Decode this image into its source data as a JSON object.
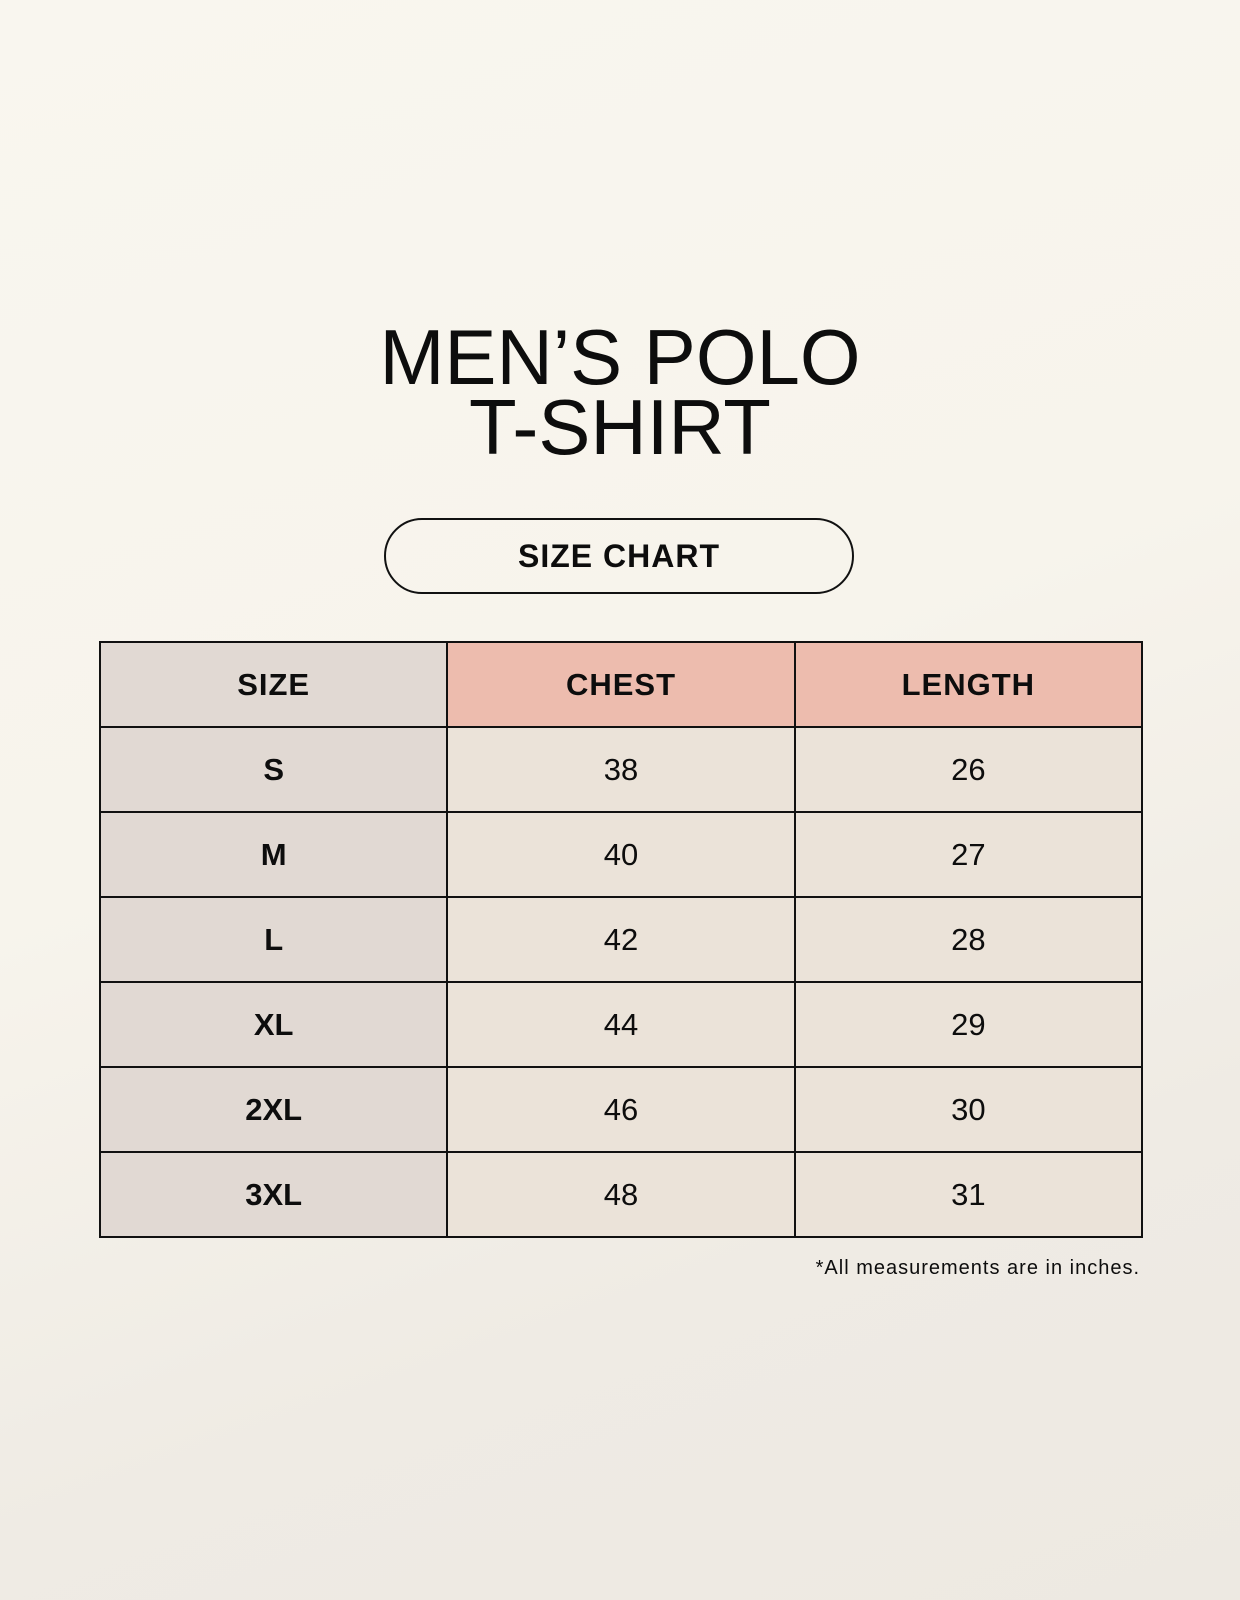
{
  "title": {
    "line1": "MEN’S POLO",
    "line2": "T-SHIRT"
  },
  "badge": "SIZE CHART",
  "table": {
    "headers": [
      "SIZE",
      "CHEST",
      "LENGTH"
    ],
    "rows": [
      [
        "S",
        "38",
        "26"
      ],
      [
        "M",
        "40",
        "27"
      ],
      [
        "L",
        "42",
        "28"
      ],
      [
        "XL",
        "44",
        "29"
      ],
      [
        "2XL",
        "46",
        "30"
      ],
      [
        "3XL",
        "48",
        "31"
      ]
    ]
  },
  "footnote": "*All measurements are in inches.",
  "colors": {
    "header_accent": "#edbcae",
    "size_column": "#e1d9d3",
    "cells": "#ebe3d9"
  }
}
